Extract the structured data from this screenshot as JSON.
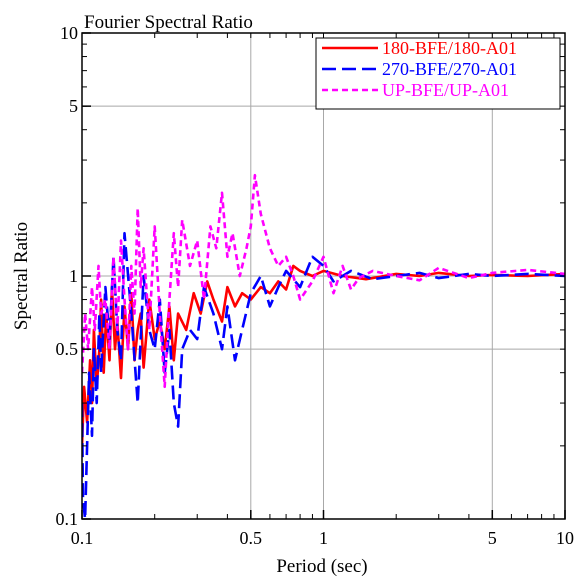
{
  "chart_data": {
    "type": "line",
    "title": "Fourier Spectral Ratio",
    "xlabel": "Period (sec)",
    "ylabel": "Spectral Ratio",
    "x_scale": "log",
    "y_scale": "log",
    "xlim": [
      0.1,
      10
    ],
    "ylim": [
      0.1,
      10
    ],
    "grid": true,
    "legend_position": "top-right",
    "x_ticks": [
      {
        "value": 0.1,
        "label": "0.1"
      },
      {
        "value": 0.5,
        "label": "0.5"
      },
      {
        "value": 1,
        "label": "1"
      },
      {
        "value": 5,
        "label": "5"
      },
      {
        "value": 10,
        "label": "10"
      }
    ],
    "y_ticks": [
      {
        "value": 0.1,
        "label": "0.1"
      },
      {
        "value": 0.5,
        "label": "0.5"
      },
      {
        "value": 1,
        "label": "1"
      },
      {
        "value": 5,
        "label": "5"
      },
      {
        "value": 10,
        "label": "10"
      }
    ],
    "series": [
      {
        "name": "180-BFE/180-A01",
        "color": "#ff0000",
        "dash": "solid",
        "x": [
          0.1,
          0.102,
          0.105,
          0.108,
          0.11,
          0.112,
          0.115,
          0.118,
          0.12,
          0.123,
          0.126,
          0.13,
          0.133,
          0.137,
          0.14,
          0.145,
          0.15,
          0.155,
          0.16,
          0.165,
          0.17,
          0.175,
          0.18,
          0.19,
          0.2,
          0.21,
          0.22,
          0.23,
          0.24,
          0.25,
          0.27,
          0.29,
          0.31,
          0.33,
          0.35,
          0.38,
          0.4,
          0.43,
          0.46,
          0.5,
          0.55,
          0.6,
          0.65,
          0.7,
          0.75,
          0.8,
          0.9,
          1.0,
          1.2,
          1.5,
          2.0,
          2.5,
          3.0,
          4.0,
          5.0,
          7.0,
          10.0
        ],
        "values": [
          0.2,
          0.35,
          0.25,
          0.45,
          0.3,
          0.6,
          0.35,
          0.5,
          0.8,
          0.4,
          0.7,
          0.45,
          0.9,
          0.5,
          0.65,
          0.38,
          0.75,
          0.5,
          0.85,
          0.45,
          0.6,
          0.7,
          0.42,
          0.8,
          0.55,
          0.65,
          0.5,
          0.75,
          0.45,
          0.7,
          0.6,
          0.85,
          0.7,
          0.95,
          0.8,
          0.65,
          0.9,
          0.75,
          0.85,
          0.8,
          0.9,
          0.85,
          0.95,
          0.88,
          1.1,
          1.05,
          1.0,
          1.05,
          1.0,
          0.97,
          1.02,
          1.0,
          1.03,
          1.0,
          1.01,
          1.0,
          1.02
        ]
      },
      {
        "name": "270-BFE/270-A01",
        "color": "#0000ff",
        "dash": "long-dash",
        "x": [
          0.1,
          0.101,
          0.103,
          0.105,
          0.107,
          0.11,
          0.112,
          0.115,
          0.118,
          0.12,
          0.125,
          0.13,
          0.135,
          0.14,
          0.145,
          0.15,
          0.16,
          0.17,
          0.18,
          0.19,
          0.2,
          0.21,
          0.22,
          0.23,
          0.24,
          0.25,
          0.26,
          0.28,
          0.3,
          0.32,
          0.35,
          0.38,
          0.4,
          0.43,
          0.46,
          0.5,
          0.55,
          0.6,
          0.65,
          0.7,
          0.8,
          0.9,
          1.0,
          1.1,
          1.3,
          1.6,
          2.0,
          2.5,
          3.0,
          4.0,
          5.0,
          7.0,
          10.0
        ],
        "values": [
          0.3,
          0.12,
          0.1,
          0.2,
          0.4,
          0.22,
          0.5,
          0.3,
          0.7,
          0.4,
          0.9,
          0.55,
          1.2,
          0.6,
          0.45,
          1.5,
          0.7,
          0.3,
          1.0,
          0.6,
          0.5,
          0.8,
          0.4,
          0.6,
          0.3,
          0.24,
          0.5,
          0.6,
          0.55,
          0.9,
          0.7,
          0.5,
          0.75,
          0.45,
          0.6,
          0.85,
          1.0,
          0.75,
          0.9,
          1.05,
          0.9,
          1.2,
          1.1,
          0.95,
          1.05,
          0.97,
          1.0,
          1.03,
          0.98,
          1.02,
          1.0,
          1.02,
          1.0
        ]
      },
      {
        "name": "UP-BFE/UP-A01",
        "color": "#ff00ff",
        "dash": "short-dash",
        "x": [
          0.1,
          0.103,
          0.106,
          0.11,
          0.113,
          0.117,
          0.12,
          0.125,
          0.13,
          0.135,
          0.14,
          0.145,
          0.15,
          0.155,
          0.16,
          0.165,
          0.17,
          0.175,
          0.18,
          0.19,
          0.2,
          0.21,
          0.22,
          0.23,
          0.24,
          0.25,
          0.26,
          0.28,
          0.3,
          0.32,
          0.34,
          0.36,
          0.38,
          0.4,
          0.42,
          0.45,
          0.48,
          0.5,
          0.52,
          0.55,
          0.6,
          0.65,
          0.7,
          0.75,
          0.8,
          0.9,
          1.0,
          1.1,
          1.2,
          1.3,
          1.4,
          1.6,
          2.0,
          2.5,
          3.0,
          4.0,
          5.0,
          7.0,
          10.0
        ],
        "values": [
          0.4,
          0.7,
          0.5,
          0.9,
          0.6,
          1.1,
          0.7,
          0.8,
          0.5,
          1.2,
          0.6,
          1.4,
          0.8,
          0.5,
          1.1,
          0.7,
          1.9,
          0.9,
          1.3,
          0.6,
          1.6,
          0.7,
          0.35,
          0.8,
          1.5,
          0.9,
          1.7,
          1.1,
          1.4,
          0.8,
          1.6,
          1.3,
          2.2,
          1.2,
          1.5,
          1.0,
          1.3,
          1.6,
          2.6,
          1.8,
          1.3,
          1.1,
          1.2,
          1.0,
          0.8,
          0.95,
          1.2,
          0.85,
          1.1,
          0.88,
          0.98,
          1.05,
          1.0,
          0.96,
          1.08,
          0.98,
          1.03,
          1.06,
          1.02
        ]
      }
    ]
  }
}
